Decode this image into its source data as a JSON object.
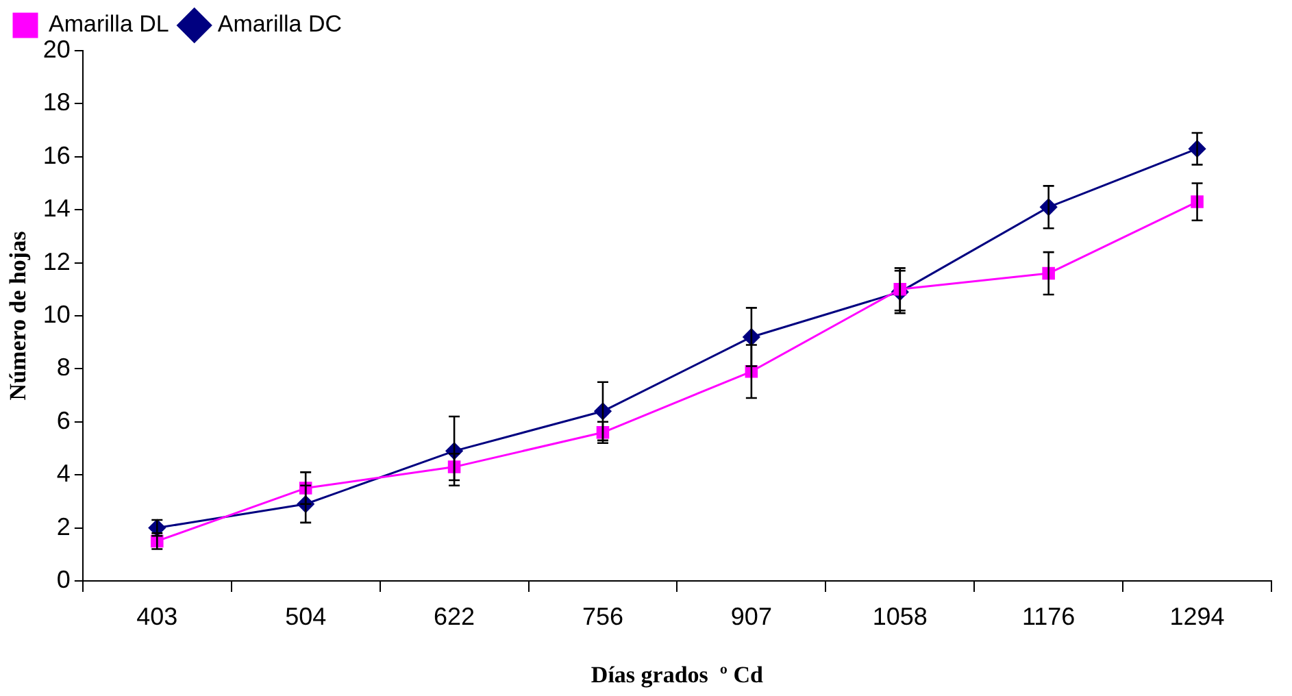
{
  "chart_data": {
    "type": "line",
    "xlabel": "Días grados  º Cd",
    "ylabel": "Número de hojas",
    "categories": [
      "403",
      "504",
      "622",
      "756",
      "907",
      "1058",
      "1176",
      "1294"
    ],
    "series": [
      {
        "name": "Amarilla DC",
        "color": "#000080",
        "marker": "diamond",
        "values": [
          2.0,
          2.9,
          4.9,
          6.4,
          9.2,
          10.9,
          14.1,
          16.3
        ],
        "errors": [
          0.3,
          0.7,
          1.3,
          1.1,
          1.1,
          0.8,
          0.8,
          0.6
        ]
      },
      {
        "name": "Amarilla DL",
        "color": "#ff00ff",
        "marker": "square",
        "values": [
          1.5,
          3.5,
          4.3,
          5.6,
          7.9,
          11.0,
          11.6,
          14.3
        ],
        "errors": [
          0.3,
          0.6,
          0.5,
          0.4,
          1.0,
          0.8,
          0.8,
          0.7
        ]
      }
    ],
    "ylim": [
      0,
      20
    ],
    "yticks": [
      0,
      2,
      4,
      6,
      8,
      10,
      12,
      14,
      16,
      18,
      20
    ],
    "grid": false,
    "legend": "top left"
  }
}
